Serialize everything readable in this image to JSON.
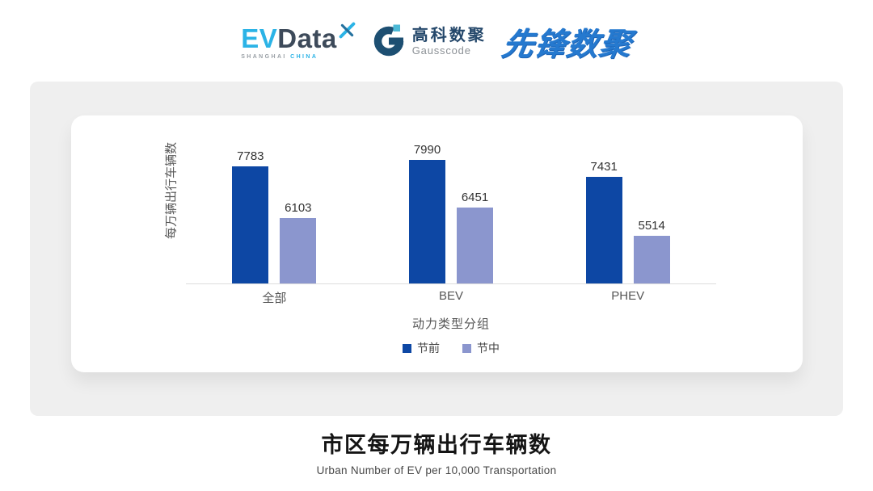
{
  "header": {
    "evdata": {
      "ev": "EV",
      "data": "Data",
      "sub_left": "SHANGHAI",
      "sub_right": "CHINA"
    },
    "gausscode": {
      "cn": "高科数聚",
      "en": "Gausscode"
    },
    "pioneer": {
      "text": "先锋数聚"
    }
  },
  "chart_data": {
    "type": "bar",
    "categories": [
      "全部",
      "BEV",
      "PHEV"
    ],
    "series": [
      {
        "name": "节前",
        "color": "#0d47a4",
        "values": [
          7783,
          7990,
          7431
        ]
      },
      {
        "name": "节中",
        "color": "#8b96ce",
        "values": [
          6103,
          6451,
          5514
        ]
      }
    ],
    "xlabel": "动力类型分组",
    "ylabel": "每万辆出行车辆数",
    "ylim": [
      3975,
      8175
    ],
    "grid": false,
    "legend_position": "bottom",
    "value_labels": true
  },
  "footer": {
    "title": "市区每万辆出行车辆数",
    "subtitle": "Urban Number of EV per 10,000 Transportation"
  }
}
